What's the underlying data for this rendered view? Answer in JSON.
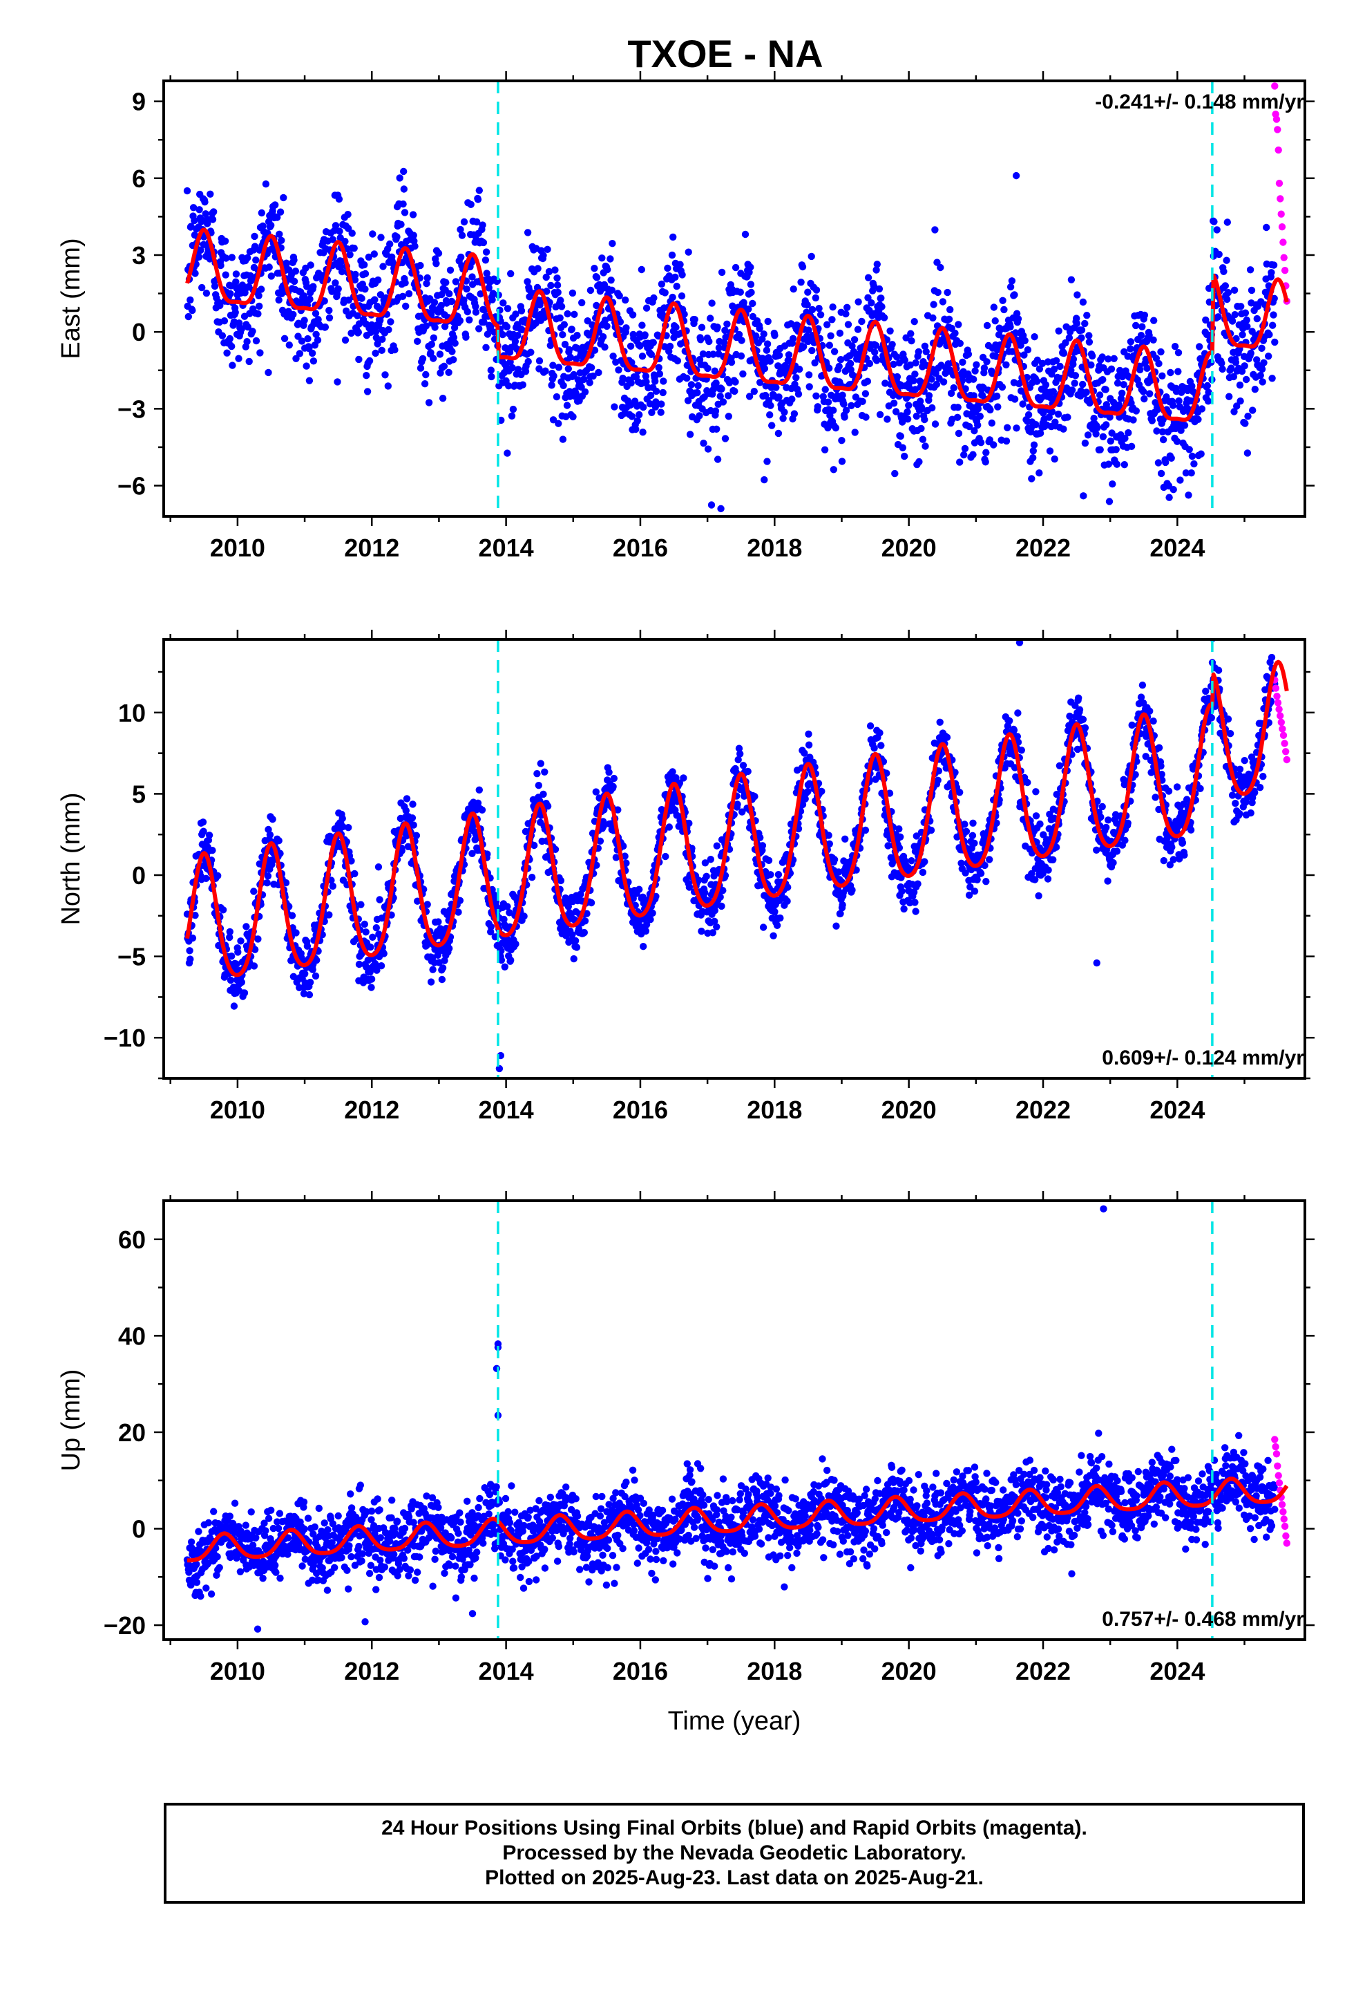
{
  "title": "TXOE - NA",
  "footer": {
    "line1": "24 Hour Positions Using Final Orbits (blue) and Rapid Orbits (magenta).",
    "line2": "Processed by the Nevada Geodetic Laboratory.",
    "line3": "Plotted on 2025-Aug-23. Last data on 2025-Aug-21."
  },
  "colors": {
    "final": "#0000ff",
    "rapid": "#ff00ff",
    "model": "#ff0000",
    "event": "#00e5e5"
  },
  "chart_data": [
    {
      "type": "scatter",
      "component": "East",
      "ylabel": "East (mm)",
      "xlabel": "",
      "xlim": [
        2008.9,
        2025.9
      ],
      "ylim": [
        -7.2,
        9.8
      ],
      "yticks": [
        -6,
        -3,
        0,
        3,
        6,
        9
      ],
      "xticks": [
        2010,
        2012,
        2014,
        2016,
        2018,
        2020,
        2022,
        2024
      ],
      "rate_label": "-0.241+/- 0.148 mm/yr",
      "rate_position": "top-right",
      "event_lines": [
        2013.88,
        2024.52
      ],
      "model": {
        "offset0": 2.3,
        "trend": -0.24,
        "annual_amp": 1.35,
        "annual_phase": 2009.5,
        "semiannual_amp": 0.4,
        "steps": [
          {
            "year": 2013.88,
            "dy": -1.2
          },
          {
            "year": 2024.52,
            "dy": 3.1
          }
        ]
      },
      "scatter": {
        "noise": 1.3,
        "start": 2009.25,
        "end": 2025.45
      },
      "rapid": {
        "start": 2025.45,
        "end": 2025.63,
        "values": [
          9.6,
          8.5,
          8.3,
          7.9,
          7.1,
          5.8,
          5.2,
          4.6,
          4.1,
          3.5,
          2.9,
          2.4,
          1.8,
          1.2
        ]
      },
      "outliers": [
        [
          2021.6,
          6.1
        ],
        [
          2017.2,
          -6.9
        ],
        [
          2022.6,
          -6.4
        ]
      ]
    },
    {
      "type": "scatter",
      "component": "North",
      "ylabel": "North (mm)",
      "xlabel": "",
      "xlim": [
        2008.9,
        2025.9
      ],
      "ylim": [
        -12.5,
        14.5
      ],
      "yticks": [
        -10,
        -5,
        0,
        5,
        10
      ],
      "xticks": [
        2010,
        2012,
        2014,
        2016,
        2018,
        2020,
        2022,
        2024
      ],
      "rate_label": "0.609+/- 0.124 mm/yr",
      "rate_position": "bottom-right",
      "event_lines": [
        2013.88,
        2024.52
      ],
      "model": {
        "offset0": -3.3,
        "trend": 0.61,
        "annual_amp": 3.9,
        "annual_phase": 2009.5,
        "semiannual_amp": 0.6,
        "steps": [
          {
            "year": 2024.52,
            "dy": 2.0
          }
        ]
      },
      "scatter": {
        "noise": 1.0,
        "start": 2009.25,
        "end": 2025.45
      },
      "rapid": {
        "start": 2025.45,
        "end": 2025.63,
        "values": [
          12.0,
          11.5,
          11.0,
          10.6,
          10.2,
          9.8,
          9.4,
          9.0,
          8.6,
          8.1,
          7.6,
          7.1
        ]
      },
      "outliers": [
        [
          2021.65,
          14.3
        ],
        [
          2013.9,
          -11.9
        ],
        [
          2013.92,
          -11.1
        ],
        [
          2022.8,
          -5.4
        ],
        [
          2012.1,
          0.5
        ]
      ]
    },
    {
      "type": "scatter",
      "component": "Up",
      "ylabel": "Up (mm)",
      "xlabel": "Time (year)",
      "xlim": [
        2008.9,
        2025.9
      ],
      "ylim": [
        -23,
        68
      ],
      "yticks": [
        -20,
        0,
        20,
        40,
        60
      ],
      "xticks": [
        2010,
        2012,
        2014,
        2016,
        2018,
        2020,
        2022,
        2024
      ],
      "rate_label": "0.757+/- 0.468 mm/yr",
      "rate_position": "bottom-right",
      "event_lines": [
        2013.88,
        2024.52
      ],
      "model": {
        "offset0": -4.5,
        "trend": 0.757,
        "annual_amp": 2.6,
        "annual_phase": 2009.8,
        "semiannual_amp": 0.5,
        "steps": []
      },
      "scatter": {
        "noise": 3.6,
        "start": 2009.25,
        "end": 2025.45
      },
      "rapid": {
        "start": 2025.45,
        "end": 2025.63,
        "values": [
          18.5,
          17.0,
          15.5,
          13.0,
          11.0,
          9.5,
          8.0,
          6.5,
          5.0,
          3.5,
          2.0,
          0.5,
          -1.5,
          -3.0
        ]
      },
      "outliers": [
        [
          2022.9,
          66.3
        ],
        [
          2013.88,
          38.3
        ],
        [
          2013.88,
          37.6
        ],
        [
          2013.86,
          33.2
        ],
        [
          2013.88,
          23.5
        ],
        [
          2010.3,
          -20.8
        ],
        [
          2011.9,
          -19.3
        ],
        [
          2013.5,
          -17.6
        ]
      ]
    }
  ]
}
